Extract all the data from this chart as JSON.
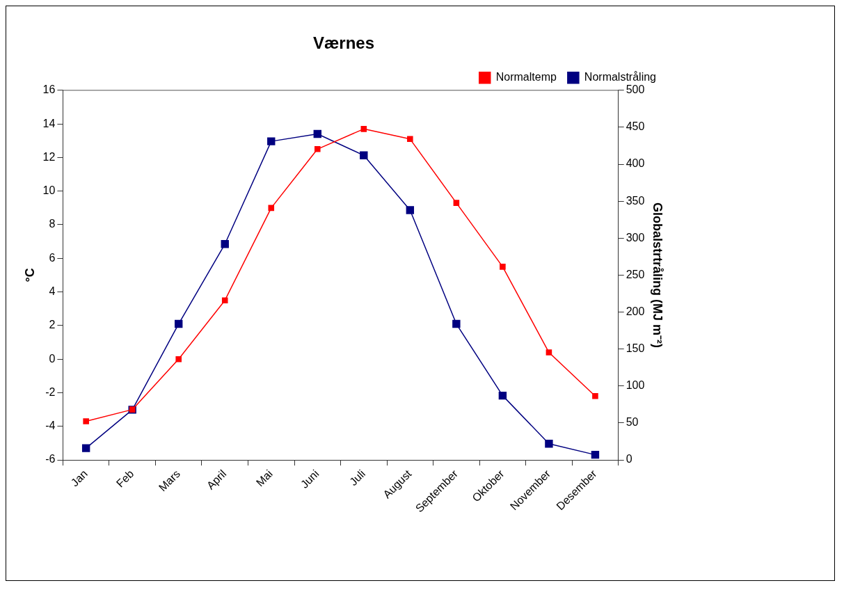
{
  "chart_data": {
    "type": "line",
    "title": "Værnes",
    "ylabel": "°C",
    "y2label": "Globalstrtråling (MJ m⁻²)",
    "categories": [
      "Jan",
      "Feb",
      "Mars",
      "April",
      "Mai",
      "Juni",
      "Juli",
      "August",
      "September",
      "Oktober",
      "November",
      "Desember"
    ],
    "series": [
      {
        "name": "Normaltemp",
        "color": "#ff0000",
        "values": [
          -3.7,
          -3.0,
          0.0,
          3.5,
          9.0,
          12.5,
          13.7,
          13.1,
          9.3,
          5.5,
          0.4,
          -2.2
        ]
      },
      {
        "name": "Normalstråling",
        "color": "#000080",
        "axis": "y2",
        "values": [
          16,
          68,
          184,
          292,
          431,
          441,
          412,
          338,
          184,
          87,
          22,
          7
        ]
      }
    ],
    "ylim": [
      -6,
      16
    ],
    "yticks": [
      -6,
      -4,
      -2,
      0,
      2,
      4,
      6,
      8,
      10,
      12,
      14,
      16
    ],
    "y2lim": [
      0,
      500
    ],
    "y2ticks": [
      0,
      50,
      100,
      150,
      200,
      250,
      300,
      350,
      400,
      450,
      500
    ],
    "grid": false,
    "legend": "top right",
    "marker": "square",
    "line_style": "solid"
  }
}
